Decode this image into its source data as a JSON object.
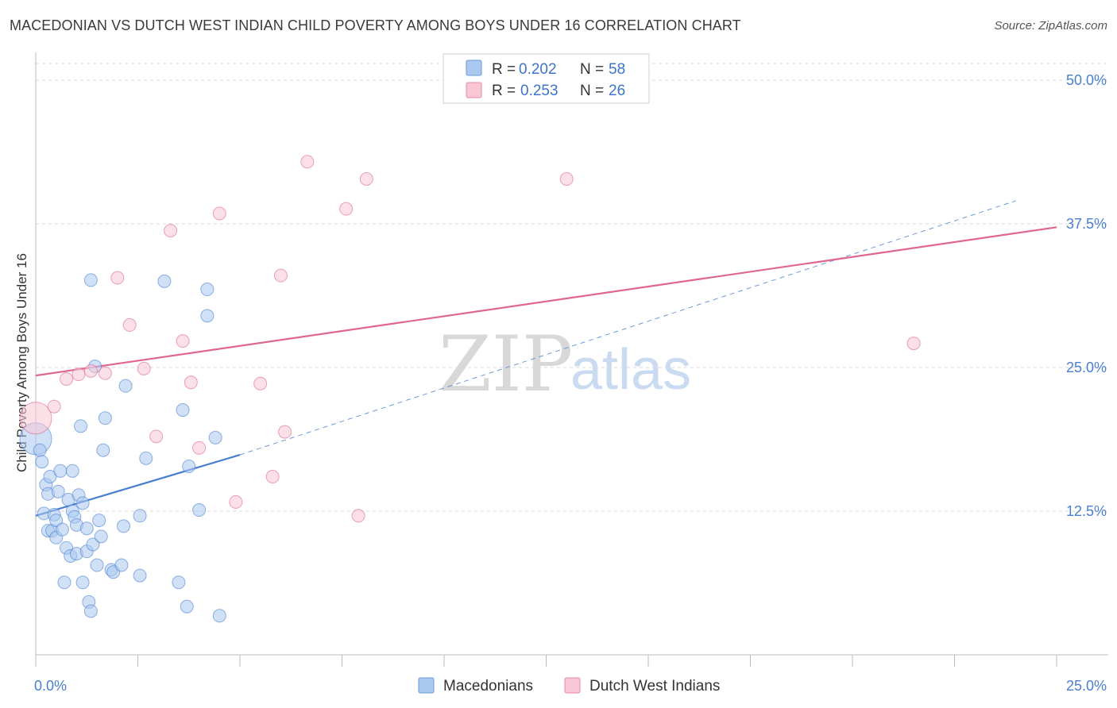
{
  "header": {
    "title": "MACEDONIAN VS DUTCH WEST INDIAN CHILD POVERTY AMONG BOYS UNDER 16 CORRELATION CHART",
    "source": "Source: ZipAtlas.com"
  },
  "watermark": {
    "zip": "ZIP",
    "atlas": "atlas"
  },
  "legend": {
    "rows": [
      {
        "r_label": "R = ",
        "r_value": "0.202",
        "n_label": "N = ",
        "n_value": "58",
        "color": "#aac8f0",
        "stroke": "#6a9ad8"
      },
      {
        "r_label": "R = ",
        "r_value": "0.253",
        "n_label": "N = ",
        "n_value": "26",
        "color": "#f8c6d4",
        "stroke": "#e88aa6"
      }
    ]
  },
  "bottom_legend": {
    "items": [
      {
        "label": "Macedonians",
        "color": "#aac8f0",
        "stroke": "#6a9ad8"
      },
      {
        "label": "Dutch West Indians",
        "color": "#f8c6d4",
        "stroke": "#e88aa6"
      }
    ]
  },
  "chart_data": {
    "type": "scatter",
    "title": "MACEDONIAN VS DUTCH WEST INDIAN CHILD POVERTY AMONG BOYS UNDER 16 CORRELATION CHART",
    "xlabel": "",
    "ylabel": "Child Poverty Among Boys Under 16",
    "xlim": [
      0,
      25
    ],
    "ylim": [
      0,
      52
    ],
    "x_tick_labels": [
      "0.0%",
      "25.0%"
    ],
    "y_ticks": [
      12.5,
      25.0,
      37.5,
      50.0
    ],
    "y_tick_labels": [
      "12.5%",
      "25.0%",
      "37.5%",
      "50.0%"
    ],
    "grid": true,
    "legend_position": "top-center",
    "series": [
      {
        "name": "Macedonians",
        "color": "#4a7fd0",
        "fill": "#aac8f0",
        "points": [
          [
            0.0,
            18.8
          ],
          [
            0.1,
            17.8
          ],
          [
            0.15,
            16.8
          ],
          [
            0.2,
            12.3
          ],
          [
            0.25,
            14.8
          ],
          [
            0.3,
            14.0
          ],
          [
            0.3,
            10.8
          ],
          [
            0.35,
            15.5
          ],
          [
            0.4,
            10.8
          ],
          [
            0.45,
            12.2
          ],
          [
            0.5,
            11.7
          ],
          [
            0.5,
            10.2
          ],
          [
            0.55,
            14.2
          ],
          [
            0.6,
            16.0
          ],
          [
            0.65,
            10.9
          ],
          [
            0.7,
            6.3
          ],
          [
            0.75,
            9.3
          ],
          [
            0.8,
            13.5
          ],
          [
            0.85,
            8.6
          ],
          [
            0.9,
            12.5
          ],
          [
            0.9,
            16.0
          ],
          [
            0.95,
            12.0
          ],
          [
            1.0,
            11.3
          ],
          [
            1.0,
            8.8
          ],
          [
            1.05,
            13.9
          ],
          [
            1.1,
            19.9
          ],
          [
            1.15,
            13.2
          ],
          [
            1.15,
            6.3
          ],
          [
            1.25,
            11.0
          ],
          [
            1.25,
            9.0
          ],
          [
            1.3,
            4.6
          ],
          [
            1.35,
            3.8
          ],
          [
            1.4,
            9.6
          ],
          [
            1.35,
            32.6
          ],
          [
            1.45,
            25.1
          ],
          [
            1.5,
            7.8
          ],
          [
            1.55,
            11.7
          ],
          [
            1.6,
            10.3
          ],
          [
            1.65,
            17.8
          ],
          [
            1.7,
            20.6
          ],
          [
            1.85,
            7.4
          ],
          [
            1.9,
            7.2
          ],
          [
            2.1,
            7.8
          ],
          [
            2.15,
            11.2
          ],
          [
            2.2,
            23.4
          ],
          [
            2.55,
            12.1
          ],
          [
            2.55,
            6.9
          ],
          [
            2.7,
            17.1
          ],
          [
            3.15,
            32.5
          ],
          [
            3.5,
            6.3
          ],
          [
            3.6,
            21.3
          ],
          [
            3.7,
            4.2
          ],
          [
            3.75,
            16.4
          ],
          [
            4.0,
            12.6
          ],
          [
            4.2,
            31.8
          ],
          [
            4.2,
            29.5
          ],
          [
            4.4,
            18.9
          ],
          [
            4.5,
            3.4
          ]
        ]
      },
      {
        "name": "Dutch West Indians",
        "color": "#e0668f",
        "fill": "#f8c6d4",
        "points": [
          [
            0.0,
            20.6
          ],
          [
            0.45,
            21.6
          ],
          [
            0.75,
            24.0
          ],
          [
            1.05,
            24.4
          ],
          [
            1.35,
            24.7
          ],
          [
            1.7,
            24.5
          ],
          [
            2.0,
            32.8
          ],
          [
            2.3,
            28.7
          ],
          [
            2.65,
            24.9
          ],
          [
            2.95,
            19.0
          ],
          [
            3.3,
            36.9
          ],
          [
            3.6,
            27.3
          ],
          [
            3.8,
            23.7
          ],
          [
            4.0,
            18.0
          ],
          [
            4.5,
            38.4
          ],
          [
            4.9,
            13.3
          ],
          [
            5.5,
            23.6
          ],
          [
            5.8,
            15.5
          ],
          [
            6.0,
            33.0
          ],
          [
            6.1,
            19.4
          ],
          [
            6.65,
            42.9
          ],
          [
            7.6,
            38.8
          ],
          [
            7.9,
            12.1
          ],
          [
            8.1,
            41.4
          ],
          [
            13.0,
            41.4
          ],
          [
            21.5,
            27.1
          ]
        ]
      }
    ],
    "trend_lines": [
      {
        "series": "Macedonians",
        "solid": [
          [
            0.0,
            12.1
          ],
          [
            5.0,
            17.4
          ]
        ],
        "dashed": [
          [
            5.0,
            17.4
          ],
          [
            24.0,
            39.5
          ]
        ]
      },
      {
        "series": "Dutch West Indians",
        "solid": [
          [
            0.0,
            24.3
          ],
          [
            25.0,
            37.2
          ]
        ]
      }
    ]
  }
}
